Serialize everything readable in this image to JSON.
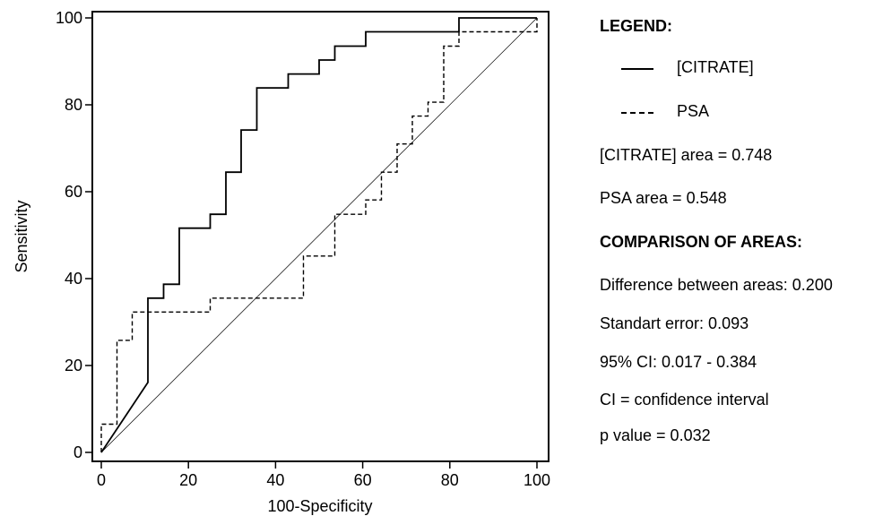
{
  "chart_data": {
    "type": "line",
    "xlabel": "100-Specificity",
    "ylabel": "Sensitivity",
    "xlim": [
      0,
      100
    ],
    "ylim": [
      0,
      100
    ],
    "x_ticks": [
      0,
      20,
      40,
      60,
      80,
      100
    ],
    "y_ticks": [
      0,
      20,
      40,
      60,
      80,
      100
    ],
    "grid": false,
    "diagonal_reference": true,
    "series": [
      {
        "name": "[CITRATE]",
        "style": "solid",
        "x": [
          0,
          10.7,
          10.7,
          14.3,
          14.3,
          17.9,
          17.9,
          25.0,
          25.0,
          28.6,
          28.6,
          32.1,
          32.1,
          35.7,
          35.7,
          42.9,
          42.9,
          50.0,
          50.0,
          53.6,
          53.6,
          60.7,
          60.7,
          82.1,
          82.1,
          100
        ],
        "y": [
          0,
          16.1,
          35.5,
          35.5,
          38.7,
          38.7,
          51.6,
          51.6,
          54.8,
          54.8,
          64.5,
          64.5,
          74.2,
          74.2,
          83.9,
          83.9,
          87.1,
          87.1,
          90.3,
          90.3,
          93.5,
          93.5,
          96.8,
          96.8,
          100,
          100
        ]
      },
      {
        "name": "PSA",
        "style": "dashed",
        "x": [
          0,
          0,
          3.6,
          3.6,
          7.1,
          7.1,
          25.0,
          25.0,
          46.4,
          46.4,
          53.6,
          53.6,
          60.7,
          60.7,
          64.3,
          64.3,
          67.9,
          67.9,
          71.4,
          71.4,
          75.0,
          75.0,
          78.6,
          78.6,
          82.1,
          82.1,
          100,
          100
        ],
        "y": [
          0,
          6.5,
          6.5,
          25.8,
          25.8,
          32.3,
          32.3,
          35.5,
          35.5,
          45.2,
          45.2,
          54.8,
          54.8,
          58.1,
          58.1,
          64.5,
          64.5,
          71.0,
          71.0,
          77.4,
          77.4,
          80.6,
          80.6,
          93.5,
          93.5,
          96.8,
          96.8,
          100
        ]
      }
    ]
  },
  "legend": {
    "title": "LEGEND:",
    "items": [
      {
        "label": "[CITRATE]",
        "style": "solid"
      },
      {
        "label": "PSA",
        "style": "dashed"
      }
    ],
    "citrate_area": "[CITRATE] area = 0.748",
    "psa_area": "PSA area = 0.548",
    "comparison_heading": "COMPARISON OF AREAS:",
    "difference": "Difference between areas: 0.200",
    "std_error": "Standart error: 0.093",
    "ci": "95% CI: 0.017 - 0.384",
    "ci_note": "CI = confidence interval",
    "p_value": "p value = 0.032"
  },
  "colors": {
    "line": "#000000",
    "background": "#ffffff"
  }
}
